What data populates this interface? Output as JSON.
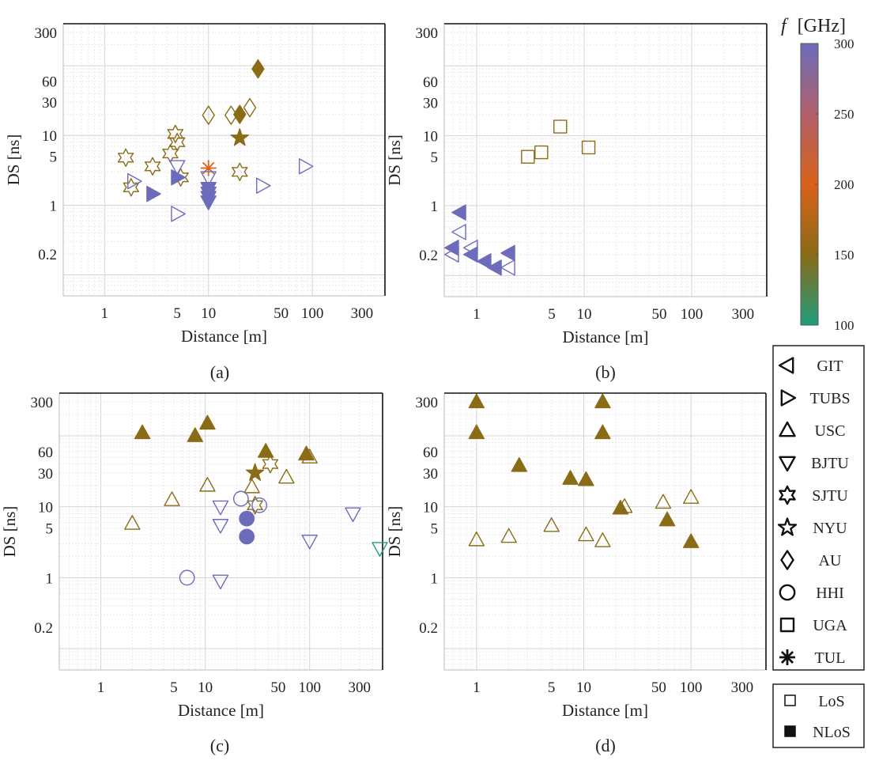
{
  "figure": {
    "colorbar": {
      "title_symbol": "f",
      "title_unit": "[GHz]",
      "ticks": [
        "300",
        "250",
        "200",
        "150",
        "100"
      ],
      "range": [
        100,
        300
      ],
      "stops": [
        {
          "value": 100,
          "color": "#1f9e7a"
        },
        {
          "value": 150,
          "color": "#8a6b16"
        },
        {
          "value": 200,
          "color": "#d9621a"
        },
        {
          "value": 250,
          "color": "#b0606b"
        },
        {
          "value": 300,
          "color": "#6c6cbb"
        }
      ]
    },
    "legend_institutions": [
      {
        "label": "GIT",
        "marker": "triangle-left-icon"
      },
      {
        "label": "TUBS",
        "marker": "triangle-right-icon"
      },
      {
        "label": "USC",
        "marker": "triangle-up-icon"
      },
      {
        "label": "BJTU",
        "marker": "triangle-down-icon"
      },
      {
        "label": "SJTU",
        "marker": "hexagram-icon"
      },
      {
        "label": "NYU",
        "marker": "pentagram-icon"
      },
      {
        "label": "AU",
        "marker": "diamond-icon"
      },
      {
        "label": "HHI",
        "marker": "circle-icon"
      },
      {
        "label": "UGA",
        "marker": "square-icon"
      },
      {
        "label": "TUL",
        "marker": "asterisk-icon"
      }
    ],
    "legend_conditions": [
      {
        "label": "LoS",
        "marker": "open-square-icon"
      },
      {
        "label": "NLoS",
        "marker": "filled-square-icon"
      }
    ]
  },
  "chart_data": [
    {
      "panel": "(a)",
      "type": "scatter",
      "xlabel": "Distance [m]",
      "ylabel": "DS [ns]",
      "x_scale": "log",
      "y_scale": "log",
      "xlim": [
        0.4,
        500
      ],
      "ylim": [
        0.05,
        400
      ],
      "xticks": [
        {
          "v": 1,
          "t": "1"
        },
        {
          "v": 5,
          "t": "5"
        },
        {
          "v": 10,
          "t": "10"
        },
        {
          "v": 50,
          "t": "50"
        },
        {
          "v": 100,
          "t": "100"
        },
        {
          "v": 300,
          "t": "300"
        }
      ],
      "yticks": [
        {
          "v": 0.2,
          "t": "0.2"
        },
        {
          "v": 1,
          "t": "1"
        },
        {
          "v": 5,
          "t": "5"
        },
        {
          "v": 10,
          "t": "10"
        },
        {
          "v": 30,
          "t": "30"
        },
        {
          "v": 60,
          "t": "60"
        },
        {
          "v": 300,
          "t": "300"
        }
      ],
      "grid": true,
      "points": [
        {
          "x": 1.6,
          "y": 4.8,
          "m": "hexagram",
          "f": false,
          "c": "#8a6b16"
        },
        {
          "x": 1.8,
          "y": 1.8,
          "m": "hexagram",
          "f": false,
          "c": "#8a6b16"
        },
        {
          "x": 2.9,
          "y": 3.6,
          "m": "hexagram",
          "f": false,
          "c": "#8a6b16"
        },
        {
          "x": 4.3,
          "y": 5.5,
          "m": "hexagram",
          "f": false,
          "c": "#8a6b16"
        },
        {
          "x": 4.8,
          "y": 10.5,
          "m": "hexagram",
          "f": false,
          "c": "#8a6b16"
        },
        {
          "x": 5.0,
          "y": 8.0,
          "m": "hexagram",
          "f": false,
          "c": "#8a6b16"
        },
        {
          "x": 5.4,
          "y": 2.5,
          "m": "hexagram",
          "f": false,
          "c": "#8a6b16"
        },
        {
          "x": 20,
          "y": 3.0,
          "m": "hexagram",
          "f": false,
          "c": "#8a6b16"
        },
        {
          "x": 20,
          "y": 9.2,
          "m": "pentagram",
          "f": true,
          "c": "#8a6b16"
        },
        {
          "x": 10,
          "y": 19.5,
          "m": "diamond",
          "f": false,
          "c": "#8a6b16"
        },
        {
          "x": 16.5,
          "y": 19.5,
          "m": "diamond",
          "f": false,
          "c": "#8a6b16"
        },
        {
          "x": 20,
          "y": 20,
          "m": "diamond",
          "f": true,
          "c": "#8a6b16"
        },
        {
          "x": 25,
          "y": 25,
          "m": "diamond",
          "f": false,
          "c": "#8a6b16"
        },
        {
          "x": 30,
          "y": 90,
          "m": "diamond",
          "f": true,
          "c": "#8a6b16"
        },
        {
          "x": 10,
          "y": 3.4,
          "m": "asterisk",
          "f": false,
          "c": "#d9621a"
        },
        {
          "x": 1.9,
          "y": 2.2,
          "m": "triangle-right",
          "f": false,
          "c": "#6c6cbb"
        },
        {
          "x": 2.9,
          "y": 1.45,
          "m": "triangle-right",
          "f": true,
          "c": "#6c6cbb"
        },
        {
          "x": 5.0,
          "y": 2.5,
          "m": "triangle-right",
          "f": true,
          "c": "#6c6cbb"
        },
        {
          "x": 5.0,
          "y": 0.75,
          "m": "triangle-right",
          "f": false,
          "c": "#6c6cbb"
        },
        {
          "x": 33,
          "y": 1.9,
          "m": "triangle-right",
          "f": false,
          "c": "#6c6cbb"
        },
        {
          "x": 85,
          "y": 3.6,
          "m": "triangle-right",
          "f": false,
          "c": "#6c6cbb"
        },
        {
          "x": 5.0,
          "y": 3.6,
          "m": "triangle-down",
          "f": false,
          "c": "#6c6cbb"
        },
        {
          "x": 10,
          "y": 2.5,
          "m": "triangle-down",
          "f": false,
          "c": "#6c6cbb"
        },
        {
          "x": 10,
          "y": 1.75,
          "m": "triangle-down",
          "f": true,
          "c": "#6c6cbb"
        },
        {
          "x": 10,
          "y": 1.5,
          "m": "triangle-down",
          "f": true,
          "c": "#6c6cbb"
        },
        {
          "x": 10,
          "y": 1.3,
          "m": "triangle-down",
          "f": true,
          "c": "#6c6cbb"
        },
        {
          "x": 10,
          "y": 1.12,
          "m": "triangle-down",
          "f": true,
          "c": "#6c6cbb"
        }
      ]
    },
    {
      "panel": "(b)",
      "type": "scatter",
      "xlabel": "Distance [m]",
      "ylabel": "DS [ns]",
      "x_scale": "log",
      "y_scale": "log",
      "xlim": [
        0.5,
        500
      ],
      "ylim": [
        0.05,
        400
      ],
      "xticks": [
        {
          "v": 1,
          "t": "1"
        },
        {
          "v": 5,
          "t": "5"
        },
        {
          "v": 10,
          "t": "10"
        },
        {
          "v": 50,
          "t": "50"
        },
        {
          "v": 100,
          "t": "100"
        },
        {
          "v": 300,
          "t": "300"
        }
      ],
      "yticks": [
        {
          "v": 0.2,
          "t": "0.2"
        },
        {
          "v": 1,
          "t": "1"
        },
        {
          "v": 5,
          "t": "5"
        },
        {
          "v": 10,
          "t": "10"
        },
        {
          "v": 30,
          "t": "30"
        },
        {
          "v": 60,
          "t": "60"
        },
        {
          "v": 300,
          "t": "300"
        }
      ],
      "grid": true,
      "points": [
        {
          "x": 3.0,
          "y": 5.0,
          "m": "square",
          "f": false,
          "c": "#8a6b16"
        },
        {
          "x": 4.0,
          "y": 5.8,
          "m": "square",
          "f": false,
          "c": "#8a6b16"
        },
        {
          "x": 6.0,
          "y": 13.5,
          "m": "square",
          "f": false,
          "c": "#8a6b16"
        },
        {
          "x": 11,
          "y": 6.8,
          "m": "square",
          "f": false,
          "c": "#8a6b16"
        },
        {
          "x": 0.7,
          "y": 0.8,
          "m": "triangle-left",
          "f": true,
          "c": "#6c6cbb"
        },
        {
          "x": 0.7,
          "y": 0.42,
          "m": "triangle-left",
          "f": false,
          "c": "#6c6cbb"
        },
        {
          "x": 0.6,
          "y": 0.25,
          "m": "triangle-left",
          "f": true,
          "c": "#6c6cbb"
        },
        {
          "x": 0.6,
          "y": 0.2,
          "m": "triangle-left",
          "f": false,
          "c": "#6c6cbb"
        },
        {
          "x": 0.9,
          "y": 0.25,
          "m": "triangle-left",
          "f": false,
          "c": "#6c6cbb"
        },
        {
          "x": 0.9,
          "y": 0.2,
          "m": "triangle-left",
          "f": true,
          "c": "#6c6cbb"
        },
        {
          "x": 1.2,
          "y": 0.16,
          "m": "triangle-left",
          "f": true,
          "c": "#6c6cbb"
        },
        {
          "x": 1.5,
          "y": 0.13,
          "m": "triangle-left",
          "f": true,
          "c": "#6c6cbb"
        },
        {
          "x": 2.0,
          "y": 0.21,
          "m": "triangle-left",
          "f": true,
          "c": "#6c6cbb"
        },
        {
          "x": 2.0,
          "y": 0.13,
          "m": "triangle-left",
          "f": false,
          "c": "#6c6cbb"
        }
      ]
    },
    {
      "panel": "(c)",
      "type": "scatter",
      "xlabel": "Distance [m]",
      "ylabel": "DS [ns]",
      "x_scale": "log",
      "y_scale": "log",
      "xlim": [
        0.4,
        500
      ],
      "ylim": [
        0.05,
        400
      ],
      "xticks": [
        {
          "v": 1,
          "t": "1"
        },
        {
          "v": 5,
          "t": "5"
        },
        {
          "v": 10,
          "t": "10"
        },
        {
          "v": 50,
          "t": "50"
        },
        {
          "v": 100,
          "t": "100"
        },
        {
          "v": 300,
          "t": "300"
        }
      ],
      "yticks": [
        {
          "v": 0.2,
          "t": "0.2"
        },
        {
          "v": 1,
          "t": "1"
        },
        {
          "v": 5,
          "t": "5"
        },
        {
          "v": 10,
          "t": "10"
        },
        {
          "v": 30,
          "t": "30"
        },
        {
          "v": 60,
          "t": "60"
        },
        {
          "v": 300,
          "t": "300"
        }
      ],
      "grid": true,
      "points": [
        {
          "x": 2.5,
          "y": 110,
          "m": "triangle-up",
          "f": true,
          "c": "#8a6b16"
        },
        {
          "x": 8.0,
          "y": 100,
          "m": "triangle-up",
          "f": true,
          "c": "#8a6b16"
        },
        {
          "x": 10.5,
          "y": 150,
          "m": "triangle-up",
          "f": true,
          "c": "#8a6b16"
        },
        {
          "x": 38,
          "y": 60,
          "m": "triangle-up",
          "f": true,
          "c": "#8a6b16"
        },
        {
          "x": 93,
          "y": 55,
          "m": "triangle-up",
          "f": true,
          "c": "#8a6b16"
        },
        {
          "x": 2.0,
          "y": 5.8,
          "m": "triangle-up",
          "f": false,
          "c": "#8a6b16"
        },
        {
          "x": 4.8,
          "y": 12.5,
          "m": "triangle-up",
          "f": false,
          "c": "#8a6b16"
        },
        {
          "x": 10.5,
          "y": 20,
          "m": "triangle-up",
          "f": false,
          "c": "#8a6b16"
        },
        {
          "x": 28,
          "y": 19,
          "m": "triangle-up",
          "f": false,
          "c": "#8a6b16"
        },
        {
          "x": 60,
          "y": 26,
          "m": "triangle-up",
          "f": false,
          "c": "#8a6b16"
        },
        {
          "x": 100,
          "y": 50,
          "m": "triangle-up",
          "f": false,
          "c": "#8a6b16"
        },
        {
          "x": 30,
          "y": 30,
          "m": "pentagram",
          "f": true,
          "c": "#8a6b16"
        },
        {
          "x": 42,
          "y": 40,
          "m": "hexagram",
          "f": false,
          "c": "#8a6b16"
        },
        {
          "x": 30,
          "y": 10.5,
          "m": "hexagram",
          "f": false,
          "c": "#8a6b16"
        },
        {
          "x": 6.7,
          "y": 1.0,
          "m": "circle",
          "f": false,
          "c": "#6c6cbb"
        },
        {
          "x": 22,
          "y": 13,
          "m": "circle",
          "f": false,
          "c": "#6c6cbb"
        },
        {
          "x": 33,
          "y": 10.5,
          "m": "circle",
          "f": false,
          "c": "#6c6cbb"
        },
        {
          "x": 25,
          "y": 6.8,
          "m": "circle",
          "f": true,
          "c": "#6c6cbb"
        },
        {
          "x": 25,
          "y": 3.8,
          "m": "circle",
          "f": true,
          "c": "#6c6cbb"
        },
        {
          "x": 14,
          "y": 10,
          "m": "triangle-down",
          "f": false,
          "c": "#6c6cbb"
        },
        {
          "x": 14,
          "y": 5.5,
          "m": "triangle-down",
          "f": false,
          "c": "#6c6cbb"
        },
        {
          "x": 14,
          "y": 0.9,
          "m": "triangle-down",
          "f": false,
          "c": "#6c6cbb"
        },
        {
          "x": 100,
          "y": 3.3,
          "m": "triangle-down",
          "f": false,
          "c": "#6c6cbb"
        },
        {
          "x": 260,
          "y": 8.0,
          "m": "triangle-down",
          "f": false,
          "c": "#6c6cbb"
        },
        {
          "x": 470,
          "y": 2.6,
          "m": "triangle-down",
          "f": false,
          "c": "#1f9e7a"
        }
      ]
    },
    {
      "panel": "(d)",
      "type": "scatter",
      "xlabel": "Distance [m]",
      "ylabel": "DS [ns]",
      "x_scale": "log",
      "y_scale": "log",
      "xlim": [
        0.5,
        500
      ],
      "ylim": [
        0.05,
        400
      ],
      "xticks": [
        {
          "v": 1,
          "t": "1"
        },
        {
          "v": 5,
          "t": "5"
        },
        {
          "v": 10,
          "t": "10"
        },
        {
          "v": 50,
          "t": "50"
        },
        {
          "v": 100,
          "t": "100"
        },
        {
          "v": 300,
          "t": "300"
        }
      ],
      "yticks": [
        {
          "v": 0.2,
          "t": "0.2"
        },
        {
          "v": 1,
          "t": "1"
        },
        {
          "v": 5,
          "t": "5"
        },
        {
          "v": 10,
          "t": "10"
        },
        {
          "v": 30,
          "t": "30"
        },
        {
          "v": 60,
          "t": "60"
        },
        {
          "v": 300,
          "t": "300"
        }
      ],
      "grid": true,
      "points": [
        {
          "x": 1.0,
          "y": 300,
          "m": "triangle-up",
          "f": true,
          "c": "#8a6b16"
        },
        {
          "x": 1.0,
          "y": 110,
          "m": "triangle-up",
          "f": true,
          "c": "#8a6b16"
        },
        {
          "x": 15,
          "y": 300,
          "m": "triangle-up",
          "f": true,
          "c": "#8a6b16"
        },
        {
          "x": 15,
          "y": 110,
          "m": "triangle-up",
          "f": true,
          "c": "#8a6b16"
        },
        {
          "x": 2.5,
          "y": 38,
          "m": "triangle-up",
          "f": true,
          "c": "#8a6b16"
        },
        {
          "x": 7.5,
          "y": 25,
          "m": "triangle-up",
          "f": true,
          "c": "#8a6b16"
        },
        {
          "x": 10.5,
          "y": 24,
          "m": "triangle-up",
          "f": true,
          "c": "#8a6b16"
        },
        {
          "x": 22,
          "y": 9.5,
          "m": "triangle-up",
          "f": true,
          "c": "#8a6b16"
        },
        {
          "x": 60,
          "y": 6.5,
          "m": "triangle-up",
          "f": true,
          "c": "#8a6b16"
        },
        {
          "x": 100,
          "y": 3.2,
          "m": "triangle-up",
          "f": true,
          "c": "#8a6b16"
        },
        {
          "x": 1.0,
          "y": 3.4,
          "m": "triangle-up",
          "f": false,
          "c": "#8a6b16"
        },
        {
          "x": 2.0,
          "y": 3.8,
          "m": "triangle-up",
          "f": false,
          "c": "#8a6b16"
        },
        {
          "x": 5.0,
          "y": 5.4,
          "m": "triangle-up",
          "f": false,
          "c": "#8a6b16"
        },
        {
          "x": 10.5,
          "y": 4.0,
          "m": "triangle-up",
          "f": false,
          "c": "#8a6b16"
        },
        {
          "x": 15,
          "y": 3.3,
          "m": "triangle-up",
          "f": false,
          "c": "#8a6b16"
        },
        {
          "x": 24,
          "y": 10,
          "m": "triangle-up",
          "f": false,
          "c": "#8a6b16"
        },
        {
          "x": 55,
          "y": 11.5,
          "m": "triangle-up",
          "f": false,
          "c": "#8a6b16"
        },
        {
          "x": 100,
          "y": 13.5,
          "m": "triangle-up",
          "f": false,
          "c": "#8a6b16"
        }
      ]
    }
  ]
}
